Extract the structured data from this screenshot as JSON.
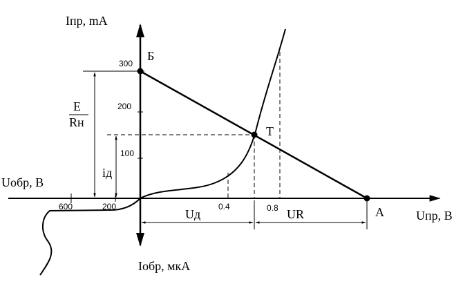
{
  "axes": {
    "y_label": "Iпр, mA",
    "x_neg_label": "Uобр, В",
    "x_label": "Uпр, В",
    "y_neg_label": "Iобр, мкА"
  },
  "points": {
    "b": "Б",
    "t": "T",
    "a": "A"
  },
  "y_ticks": [
    "300",
    "200",
    "100"
  ],
  "x_ticks": [
    "0.4",
    "0.8"
  ],
  "x_neg_ticks": [
    "600",
    "200"
  ],
  "dimensions": {
    "e": "E",
    "rn": "Rн",
    "id": "iд",
    "ud": "Uд",
    "ur": "UR"
  }
}
